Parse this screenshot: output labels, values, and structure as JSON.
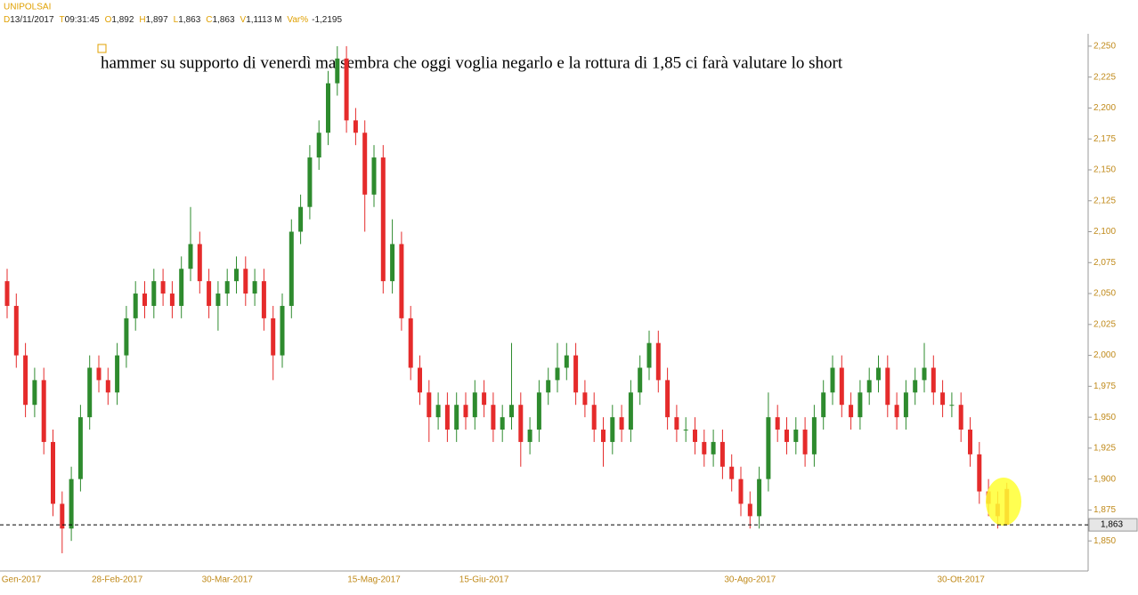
{
  "header": {
    "symbol": "UNIPOLSAI",
    "fields": [
      {
        "key": "D",
        "value": "13/11/2017"
      },
      {
        "key": "T",
        "value": "09:31:45"
      },
      {
        "key": "O",
        "value": "1,892"
      },
      {
        "key": "H",
        "value": "1,897"
      },
      {
        "key": "L",
        "value": "1,863"
      },
      {
        "key": "C",
        "value": "1,863"
      },
      {
        "key": "V",
        "value": "1,1113 M"
      },
      {
        "key": "Var%",
        "value": "-1,2195"
      }
    ]
  },
  "chart_data": {
    "type": "candlestick",
    "annotation": "hammer su supporto di venerdì ma sembra che oggi voglia negarlo e la rottura di 1,85 ci farà valutare lo short",
    "up_color": "#2e8b2e",
    "down_color": "#e52b2b",
    "ylim": [
      1.83,
      2.26
    ],
    "yticks": [
      {
        "value": 1.85,
        "label": "1,850"
      },
      {
        "value": 1.875,
        "label": "1,875"
      },
      {
        "value": 1.9,
        "label": "1,900"
      },
      {
        "value": 1.925,
        "label": "1,925"
      },
      {
        "value": 1.95,
        "label": "1,950"
      },
      {
        "value": 1.975,
        "label": "1,975"
      },
      {
        "value": 2,
        "label": "2,000"
      },
      {
        "value": 2.025,
        "label": "2,025"
      },
      {
        "value": 2.05,
        "label": "2,050"
      },
      {
        "value": 2.075,
        "label": "2,075"
      },
      {
        "value": 2.1,
        "label": "2,100"
      },
      {
        "value": 2.125,
        "label": "2,125"
      },
      {
        "value": 2.15,
        "label": "2,150"
      },
      {
        "value": 2.175,
        "label": "2,175"
      },
      {
        "value": 2.2,
        "label": "2,200"
      },
      {
        "value": 2.225,
        "label": "2,225"
      },
      {
        "value": 2.25,
        "label": "2,250"
      }
    ],
    "last_price": {
      "value": 1.863,
      "label": "1,863"
    },
    "categories": [
      "Gen-2017",
      null,
      null,
      null,
      null,
      null,
      null,
      null,
      null,
      null,
      null,
      null,
      "28-Feb-2017",
      null,
      null,
      null,
      null,
      null,
      null,
      null,
      null,
      null,
      null,
      null,
      "30-Mar-2017",
      null,
      null,
      null,
      null,
      null,
      null,
      null,
      null,
      null,
      null,
      null,
      null,
      null,
      null,
      null,
      "15-Mag-2017",
      null,
      null,
      null,
      null,
      null,
      null,
      null,
      null,
      null,
      null,
      null,
      "15-Giu-2017",
      null,
      null,
      null,
      null,
      null,
      null,
      null,
      null,
      null,
      null,
      null,
      null,
      null,
      null,
      null,
      null,
      null,
      null,
      null,
      null,
      null,
      null,
      null,
      null,
      null,
      null,
      null,
      null,
      "30-Ago-2017",
      null,
      null,
      null,
      null,
      null,
      null,
      null,
      null,
      null,
      null,
      null,
      null,
      null,
      null,
      null,
      null,
      null,
      null,
      null,
      null,
      null,
      null,
      "30-Ott-2017",
      null,
      null,
      null,
      null,
      null
    ],
    "open": [
      2.06,
      2.04,
      2.0,
      1.96,
      1.98,
      1.93,
      1.88,
      1.86,
      1.9,
      1.95,
      1.99,
      1.98,
      1.97,
      2.0,
      2.03,
      2.05,
      2.04,
      2.06,
      2.05,
      2.04,
      2.07,
      2.09,
      2.06,
      2.04,
      2.05,
      2.06,
      2.07,
      2.05,
      2.06,
      2.03,
      2.0,
      2.04,
      2.1,
      2.12,
      2.16,
      2.18,
      2.22,
      2.24,
      2.19,
      2.18,
      2.13,
      2.16,
      2.06,
      2.09,
      2.03,
      1.99,
      1.97,
      1.95,
      1.96,
      1.94,
      1.96,
      1.95,
      1.97,
      1.96,
      1.94,
      1.95,
      1.96,
      1.93,
      1.94,
      1.97,
      1.98,
      1.99,
      2.0,
      1.97,
      1.96,
      1.94,
      1.93,
      1.95,
      1.94,
      1.97,
      1.99,
      2.01,
      1.98,
      1.95,
      1.94,
      1.94,
      1.93,
      1.92,
      1.93,
      1.91,
      1.9,
      1.88,
      1.87,
      1.9,
      1.95,
      1.94,
      1.93,
      1.94,
      1.92,
      1.95,
      1.97,
      1.99,
      1.96,
      1.95,
      1.97,
      1.98,
      1.99,
      1.96,
      1.95,
      1.97,
      1.98,
      1.99,
      1.97,
      1.96,
      1.96,
      1.94,
      1.92,
      1.89,
      1.88,
      1.892
    ],
    "high": [
      2.07,
      2.05,
      2.01,
      1.99,
      1.99,
      1.94,
      1.89,
      1.91,
      1.96,
      2.0,
      2.0,
      1.99,
      2.01,
      2.04,
      2.06,
      2.06,
      2.07,
      2.07,
      2.06,
      2.08,
      2.12,
      2.1,
      2.07,
      2.06,
      2.07,
      2.08,
      2.08,
      2.07,
      2.07,
      2.04,
      2.05,
      2.11,
      2.13,
      2.17,
      2.19,
      2.23,
      2.25,
      2.25,
      2.2,
      2.19,
      2.17,
      2.17,
      2.11,
      2.1,
      2.04,
      2.0,
      1.98,
      1.97,
      1.97,
      1.97,
      1.97,
      1.98,
      1.98,
      1.97,
      1.96,
      2.01,
      1.97,
      1.95,
      1.98,
      1.99,
      2.01,
      2.01,
      2.01,
      1.98,
      1.97,
      1.95,
      1.96,
      1.96,
      1.98,
      2.0,
      2.02,
      2.02,
      1.99,
      1.96,
      1.95,
      1.95,
      1.94,
      1.94,
      1.94,
      1.92,
      1.91,
      1.89,
      1.91,
      1.97,
      1.96,
      1.95,
      1.95,
      1.95,
      1.96,
      1.98,
      2.0,
      2.0,
      1.97,
      1.98,
      1.99,
      2.0,
      2.0,
      1.97,
      1.98,
      1.99,
      2.01,
      2.0,
      1.98,
      1.97,
      1.97,
      1.95,
      1.93,
      1.9,
      1.89,
      1.897
    ],
    "low": [
      2.03,
      1.99,
      1.95,
      1.95,
      1.92,
      1.87,
      1.84,
      1.85,
      1.89,
      1.94,
      1.97,
      1.96,
      1.96,
      1.99,
      2.02,
      2.03,
      2.03,
      2.04,
      2.03,
      2.03,
      2.06,
      2.05,
      2.03,
      2.02,
      2.04,
      2.05,
      2.04,
      2.04,
      2.02,
      1.98,
      1.99,
      2.03,
      2.09,
      2.11,
      2.15,
      2.17,
      2.21,
      2.18,
      2.17,
      2.1,
      2.12,
      2.05,
      2.05,
      2.02,
      1.98,
      1.96,
      1.93,
      1.94,
      1.93,
      1.93,
      1.94,
      1.94,
      1.95,
      1.93,
      1.93,
      1.94,
      1.91,
      1.92,
      1.93,
      1.96,
      1.97,
      1.98,
      1.96,
      1.95,
      1.93,
      1.91,
      1.92,
      1.93,
      1.93,
      1.96,
      1.98,
      1.97,
      1.94,
      1.93,
      1.93,
      1.92,
      1.91,
      1.91,
      1.9,
      1.89,
      1.87,
      1.86,
      1.86,
      1.89,
      1.93,
      1.92,
      1.92,
      1.91,
      1.91,
      1.94,
      1.96,
      1.95,
      1.94,
      1.94,
      1.96,
      1.97,
      1.95,
      1.94,
      1.94,
      1.96,
      1.97,
      1.96,
      1.95,
      1.95,
      1.93,
      1.91,
      1.88,
      1.87,
      1.86,
      1.863
    ],
    "close": [
      2.04,
      2.0,
      1.96,
      1.98,
      1.93,
      1.88,
      1.86,
      1.9,
      1.95,
      1.99,
      1.98,
      1.97,
      2.0,
      2.03,
      2.05,
      2.04,
      2.06,
      2.05,
      2.04,
      2.07,
      2.09,
      2.06,
      2.04,
      2.05,
      2.06,
      2.07,
      2.05,
      2.06,
      2.03,
      2.0,
      2.04,
      2.1,
      2.12,
      2.16,
      2.18,
      2.22,
      2.24,
      2.19,
      2.18,
      2.13,
      2.16,
      2.06,
      2.09,
      2.03,
      1.99,
      1.97,
      1.95,
      1.96,
      1.94,
      1.96,
      1.95,
      1.97,
      1.96,
      1.94,
      1.95,
      1.96,
      1.93,
      1.94,
      1.97,
      1.98,
      1.99,
      2.0,
      1.97,
      1.96,
      1.94,
      1.93,
      1.95,
      1.94,
      1.97,
      1.99,
      2.01,
      1.98,
      1.95,
      1.94,
      1.94,
      1.93,
      1.92,
      1.93,
      1.91,
      1.9,
      1.88,
      1.87,
      1.9,
      1.95,
      1.94,
      1.93,
      1.94,
      1.92,
      1.95,
      1.97,
      1.99,
      1.96,
      1.95,
      1.97,
      1.98,
      1.99,
      1.96,
      1.95,
      1.97,
      1.98,
      1.99,
      1.97,
      1.96,
      1.96,
      1.94,
      1.92,
      1.89,
      1.88,
      1.87,
      1.863
    ]
  }
}
